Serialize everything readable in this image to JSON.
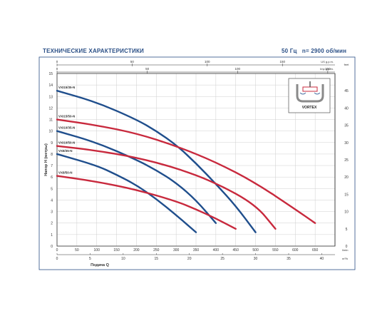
{
  "header": {
    "title": "ТЕХНИЧЕСКИЕ ХАРАКТЕРИСТИКИ",
    "frequency": "50 Гц",
    "speed": "n= 2900 об/мин"
  },
  "colors": {
    "blue_series": "#1f4e8c",
    "red_series": "#c8293d",
    "axis": "#333333",
    "grid": "#cfcfcf",
    "border": "#2a4f86"
  },
  "inset": {
    "label": "VORTEX",
    "icon": "vortex-impeller-icon"
  },
  "chart_data": {
    "type": "line",
    "ylabel": "Напор H (метры)",
    "xlabel": "Подача Q",
    "ylim": [
      0,
      15
    ],
    "y_right_lim": [
      0,
      50
    ],
    "grid": true,
    "x_scales": {
      "lmin": {
        "unit": "l/min",
        "min": 0,
        "max": 700,
        "ticks": [
          "0",
          "50",
          "100",
          "150",
          "200",
          "250",
          "300",
          "350",
          "400",
          "450",
          "500",
          "550",
          "600",
          "650"
        ]
      },
      "m3h": {
        "unit": "m³/h",
        "min": 0,
        "max": 42,
        "ticks": [
          "0",
          "5",
          "10",
          "15",
          "20",
          "25",
          "30",
          "35",
          "40"
        ]
      },
      "usgpm": {
        "unit": "US g.p.m.",
        "min": 0,
        "max": 185,
        "ticks": [
          "0",
          "50",
          "100",
          "150"
        ],
        "end_label": "US g.p.m."
      },
      "impgpm": {
        "unit": "Imp g.p.m.",
        "min": 0,
        "max": 154,
        "ticks": [
          "0",
          "50",
          "100",
          "150"
        ],
        "end_label": "Imp g.p.m."
      }
    },
    "y_ticks": [
      "0",
      "1",
      "2",
      "3",
      "4",
      "5",
      "6",
      "7",
      "8",
      "9",
      "10",
      "11",
      "12",
      "13",
      "14",
      "15"
    ],
    "y_right_ticks": [
      "0",
      "5",
      "10",
      "15",
      "20",
      "25",
      "30",
      "35",
      "40",
      "45"
    ],
    "y_right_unit": "feet",
    "series": [
      {
        "name": "VXI15/35-N",
        "color": "blue",
        "x": [
          0,
          100,
          200,
          250,
          300,
          350,
          400,
          450,
          500
        ],
        "y": [
          13.5,
          12.5,
          11.0,
          10.0,
          8.8,
          7.2,
          5.4,
          3.5,
          1.2
        ]
      },
      {
        "name": "VXI15/50-N",
        "color": "red",
        "x": [
          0,
          100,
          200,
          300,
          400,
          500,
          600,
          650
        ],
        "y": [
          11.0,
          10.5,
          9.8,
          8.7,
          7.3,
          5.5,
          3.2,
          2.0
        ]
      },
      {
        "name": "VXI10/35-N",
        "color": "blue",
        "x": [
          0,
          100,
          200,
          250,
          300,
          350,
          400
        ],
        "y": [
          10.0,
          9.0,
          7.5,
          6.6,
          5.5,
          4.0,
          2.0
        ]
      },
      {
        "name": "VXI10/50-N",
        "color": "red",
        "x": [
          0,
          100,
          200,
          300,
          400,
          500,
          550
        ],
        "y": [
          8.7,
          8.3,
          7.7,
          6.8,
          5.5,
          3.6,
          1.5
        ]
      },
      {
        "name": "VX8/35-N",
        "color": "blue",
        "x": [
          0,
          100,
          150,
          200,
          250,
          300,
          350
        ],
        "y": [
          8.0,
          7.0,
          6.2,
          5.3,
          4.1,
          2.7,
          1.2
        ]
      },
      {
        "name": "VX8/50-N",
        "color": "red",
        "x": [
          0,
          100,
          200,
          300,
          350,
          400,
          450
        ],
        "y": [
          6.1,
          5.6,
          4.9,
          3.9,
          3.2,
          2.4,
          1.5
        ]
      }
    ]
  }
}
